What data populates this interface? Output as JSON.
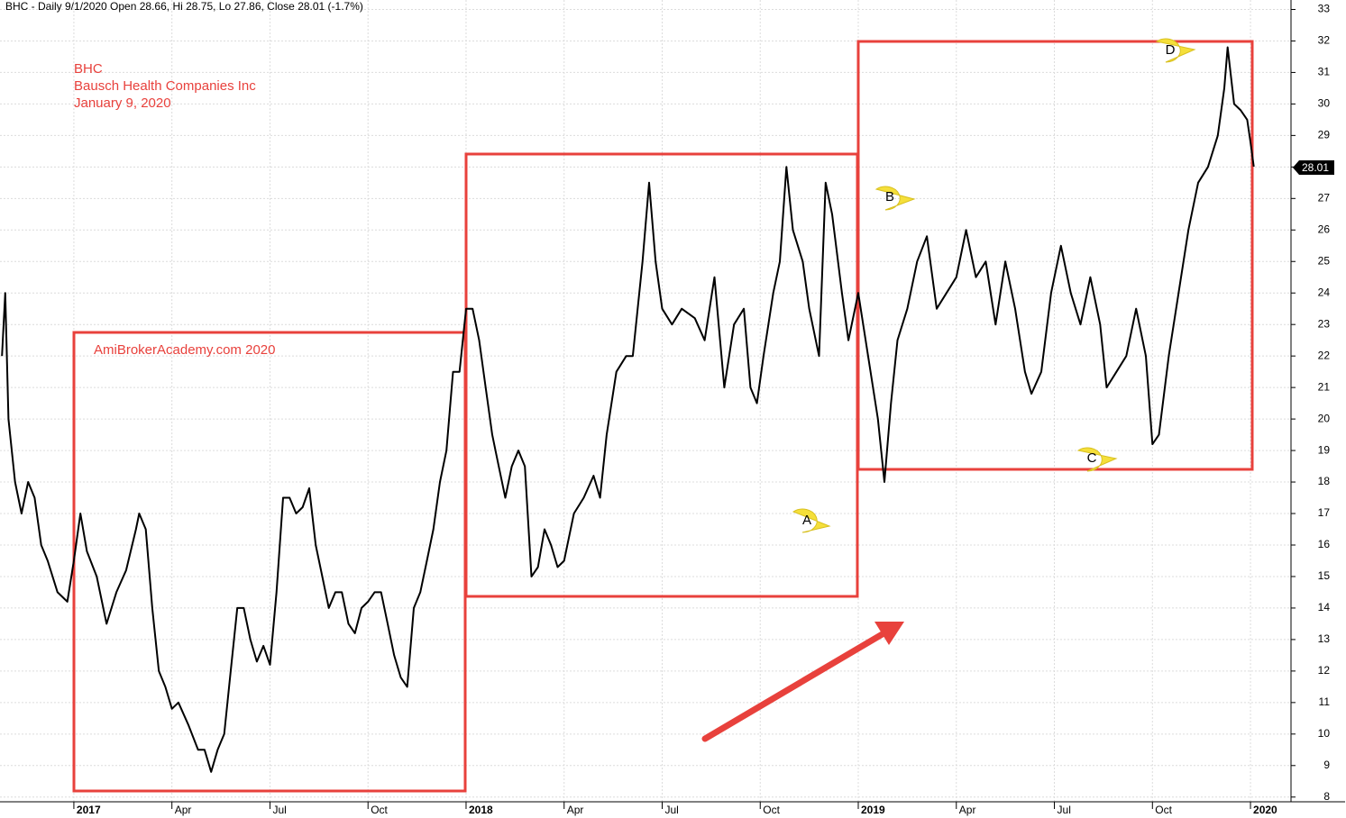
{
  "chart_data": {
    "type": "line",
    "title": "BHC - Daily 9/1/2020 Open 28.66, Hi 28.75, Lo 27.86, Close 28.01 (-1.7%)",
    "annotations": [
      "BHC",
      "Bausch Health Companies Inc",
      "January 9, 2020",
      "AmiBrokerAcademy.com   2020",
      "A",
      "B",
      "C",
      "D",
      "28.01"
    ],
    "x": [
      -2.2,
      -2.1,
      -2.0,
      -1.8,
      -1.6,
      -1.4,
      -1.2,
      -1.0,
      -0.8,
      -0.5,
      -0.2,
      0,
      0.2,
      0.4,
      0.7,
      1.0,
      1.3,
      1.6,
      1.9,
      2.0,
      2.2,
      2.4,
      2.6,
      2.8,
      3.0,
      3.2,
      3.5,
      3.8,
      4.0,
      4.2,
      4.4,
      4.6,
      4.8,
      5.0,
      5.2,
      5.4,
      5.6,
      5.8,
      6.0,
      6.2,
      6.4,
      6.6,
      6.8,
      7.0,
      7.2,
      7.4,
      7.6,
      7.8,
      8.0,
      8.2,
      8.4,
      8.6,
      8.8,
      9.0,
      9.2,
      9.4,
      9.6,
      9.8,
      10.0,
      10.2,
      10.4,
      10.6,
      10.8,
      11.0,
      11.2,
      11.4,
      11.6,
      11.8,
      12.0,
      12.2,
      12.4,
      12.6,
      12.8,
      13.0,
      13.2,
      13.4,
      13.6,
      13.8,
      14.0,
      14.2,
      14.4,
      14.6,
      14.8,
      15.0,
      15.3,
      15.6,
      15.9,
      16.1,
      16.3,
      16.6,
      16.9,
      17.1,
      17.4,
      17.6,
      17.8,
      18.0,
      18.3,
      18.6,
      19.0,
      19.3,
      19.6,
      19.9,
      20.2,
      20.5,
      20.7,
      20.9,
      21.1,
      21.4,
      21.6,
      21.8,
      22.0,
      22.3,
      22.5,
      22.8,
      23.0,
      23.2,
      23.5,
      23.7,
      24.0,
      24.3,
      24.6,
      24.8,
      25.0,
      25.2,
      25.5,
      25.8,
      26.1,
      26.4,
      26.7,
      27.0,
      27.3,
      27.6,
      27.9,
      28.2,
      28.5,
      28.8,
      29.1,
      29.3,
      29.6,
      29.9,
      30.2,
      30.5,
      30.8,
      31.1,
      31.4,
      31.6,
      31.9,
      32.2,
      32.5,
      32.8,
      33.0,
      33.2,
      33.5,
      33.8,
      34.1,
      34.4,
      34.7,
      35.0,
      35.2,
      35.3,
      35.5,
      35.7,
      35.9,
      36.0,
      36.1
    ],
    "series": [
      {
        "name": "BHC",
        "color": "#000000",
        "values": [
          22,
          24,
          20,
          18,
          17,
          18,
          17.5,
          16,
          15.5,
          14.5,
          14.2,
          15.5,
          17,
          15.8,
          15,
          13.5,
          14.5,
          15.2,
          16.5,
          17,
          16.5,
          14,
          12,
          11.5,
          10.8,
          11,
          10.3,
          9.5,
          9.5,
          8.8,
          9.5,
          10,
          12,
          14,
          14,
          13,
          12.3,
          12.8,
          12.2,
          14.5,
          17.5,
          17.5,
          17,
          17.2,
          17.8,
          16,
          15,
          14,
          14.5,
          14.5,
          13.5,
          13.2,
          14,
          14.2,
          14.5,
          14.5,
          13.5,
          12.5,
          11.8,
          11.5,
          14,
          14.5,
          15.5,
          16.5,
          18,
          19,
          21.5,
          21.5,
          23.5,
          23.5,
          22.5,
          21,
          19.5,
          18.5,
          17.5,
          18.5,
          19,
          18.5,
          15,
          15.3,
          16.5,
          16,
          15.3,
          15.5,
          17,
          17.5,
          18.2,
          17.5,
          19.5,
          21.5,
          22,
          22,
          25,
          27.5,
          25,
          23.5,
          23,
          23.5,
          23.2,
          22.5,
          24.5,
          21,
          23,
          23.5,
          21,
          20.5,
          22,
          24,
          25,
          28,
          26,
          25,
          23.5,
          22,
          27.5,
          26.5,
          24,
          22.5,
          24,
          22,
          20,
          18,
          20.5,
          22.5,
          23.5,
          25,
          25.8,
          23.5,
          24,
          24.5,
          26,
          24.5,
          25,
          23,
          25,
          23.5,
          21.5,
          20.8,
          21.5,
          24,
          25.5,
          24,
          23,
          24.5,
          23,
          21,
          21.5,
          22,
          23.5,
          22,
          19.2,
          19.5,
          22,
          24,
          26,
          27.5,
          28,
          29,
          30.5,
          31.8,
          30,
          29.8,
          29.5,
          28.8,
          28.01
        ]
      }
    ],
    "xlim": [
      -2.26,
      37.24
    ],
    "xticks": [
      {
        "value": 0,
        "label": "2017"
      },
      {
        "value": 3,
        "label": "Apr"
      },
      {
        "value": 6,
        "label": "Jul"
      },
      {
        "value": 9,
        "label": "Oct"
      },
      {
        "value": 12,
        "label": "2018"
      },
      {
        "value": 15,
        "label": "Apr"
      },
      {
        "value": 18,
        "label": "Jul"
      },
      {
        "value": 21,
        "label": "Oct"
      },
      {
        "value": 24,
        "label": "2019"
      },
      {
        "value": 27,
        "label": "Apr"
      },
      {
        "value": 30,
        "label": "Jul"
      },
      {
        "value": 33,
        "label": "Oct"
      },
      {
        "value": 36,
        "label": "2020"
      }
    ],
    "ylim": [
      7.85,
      33.3
    ],
    "yticks": [
      8,
      9,
      10,
      11,
      12,
      13,
      14,
      15,
      16,
      17,
      18,
      19,
      20,
      21,
      22,
      23,
      24,
      25,
      26,
      27,
      28,
      29,
      30,
      31,
      32,
      33
    ],
    "grid": true
  }
}
